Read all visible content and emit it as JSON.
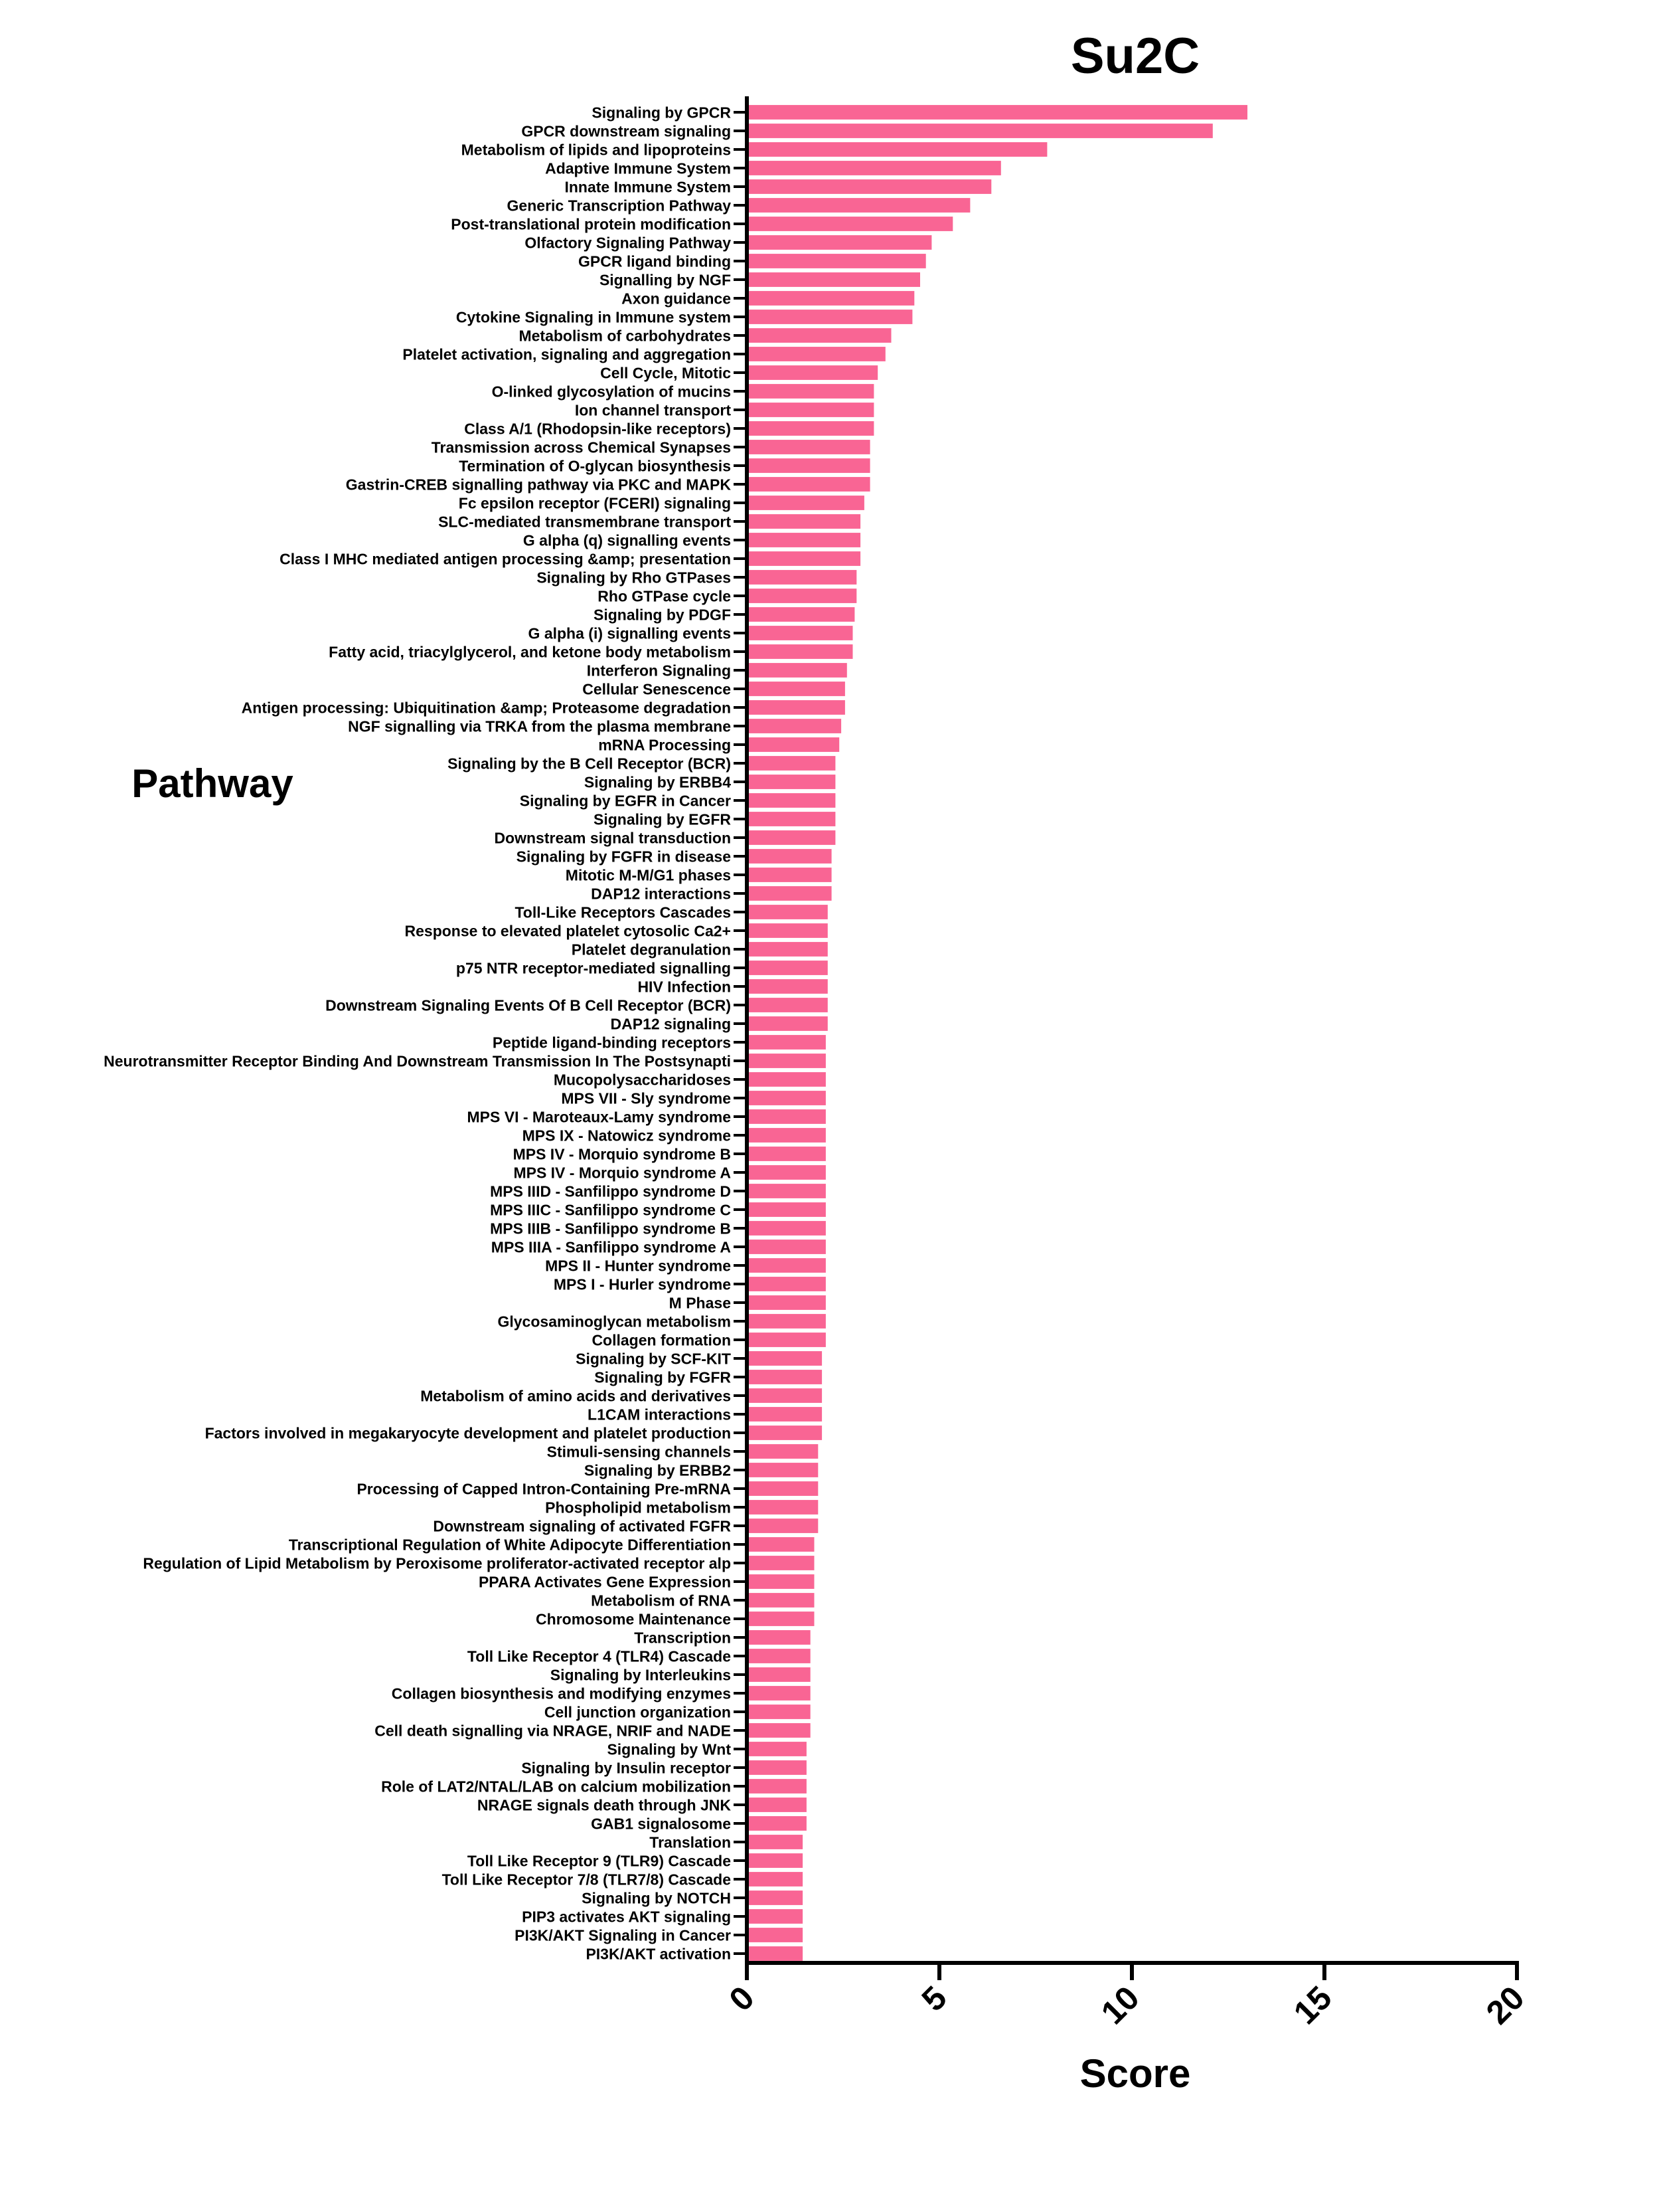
{
  "chart_data": {
    "type": "bar",
    "orientation": "horizontal",
    "title": "Su2C",
    "xlabel": "Score",
    "ylabel": "Pathway",
    "xlim": [
      0,
      20
    ],
    "xticks": [
      0,
      5,
      10,
      15,
      20
    ],
    "bar_color": "#F96594",
    "grid": false,
    "categories": [
      "Signaling by GPCR",
      "GPCR downstream signaling",
      "Metabolism of lipids and lipoproteins",
      "Adaptive Immune System",
      "Innate Immune System",
      "Generic Transcription Pathway",
      "Post-translational protein modification",
      "Olfactory Signaling Pathway",
      "GPCR ligand binding",
      "Signalling by NGF",
      "Axon guidance",
      "Cytokine Signaling in Immune system",
      "Metabolism of carbohydrates",
      "Platelet activation, signaling and aggregation",
      "Cell Cycle, Mitotic",
      "O-linked glycosylation of mucins",
      "Ion channel transport",
      "Class A/1 (Rhodopsin-like receptors)",
      "Transmission across Chemical Synapses",
      "Termination of O-glycan biosynthesis",
      "Gastrin-CREB signalling pathway via PKC and MAPK",
      "Fc epsilon receptor (FCERI) signaling",
      "SLC-mediated transmembrane transport",
      "G alpha (q) signalling events",
      "Class I MHC mediated antigen processing &amp; presentation",
      "Signaling by Rho GTPases",
      "Rho GTPase cycle",
      "Signaling by PDGF",
      "G alpha (i) signalling events",
      "Fatty acid, triacylglycerol, and ketone body metabolism",
      "Interferon Signaling",
      "Cellular Senescence",
      "Antigen processing: Ubiquitination &amp; Proteasome degradation",
      "NGF signalling via TRKA from the plasma membrane",
      "mRNA Processing",
      "Signaling by the B Cell Receptor (BCR)",
      "Signaling by ERBB4",
      "Signaling by EGFR in Cancer",
      "Signaling by EGFR",
      "Downstream signal transduction",
      "Signaling by FGFR in disease",
      "Mitotic M-M/G1 phases",
      "DAP12 interactions",
      "Toll-Like Receptors Cascades",
      "Response to elevated platelet cytosolic Ca2+",
      "Platelet degranulation",
      "p75 NTR receptor-mediated signalling",
      "HIV Infection",
      "Downstream Signaling Events Of B Cell Receptor (BCR)",
      "DAP12 signaling",
      "Peptide ligand-binding receptors",
      "Neurotransmitter Receptor Binding And Downstream Transmission In The Postsynapti",
      "Mucopolysaccharidoses",
      "MPS VII - Sly syndrome",
      "MPS VI - Maroteaux-Lamy syndrome",
      "MPS IX - Natowicz syndrome",
      "MPS IV - Morquio syndrome B",
      "MPS IV - Morquio syndrome A",
      "MPS IIID - Sanfilippo syndrome D",
      "MPS IIIC - Sanfilippo syndrome C",
      "MPS IIIB - Sanfilippo syndrome B",
      "MPS IIIA - Sanfilippo syndrome A",
      "MPS II - Hunter syndrome",
      "MPS I - Hurler syndrome",
      "M Phase",
      "Glycosaminoglycan metabolism",
      "Collagen formation",
      "Signaling by SCF-KIT",
      "Signaling by FGFR",
      "Metabolism of amino acids and derivatives",
      "L1CAM interactions",
      "Factors involved in megakaryocyte development and platelet production",
      "Stimuli-sensing channels",
      "Signaling by ERBB2",
      "Processing of Capped Intron-Containing Pre-mRNA",
      "Phospholipid metabolism",
      "Downstream signaling of activated FGFR",
      "Transcriptional Regulation of White Adipocyte Differentiation",
      "Regulation of Lipid Metabolism by Peroxisome proliferator-activated receptor alp",
      "PPARA Activates Gene Expression",
      "Metabolism of RNA",
      "Chromosome Maintenance",
      "Transcription",
      "Toll Like Receptor 4 (TLR4) Cascade",
      "Signaling by Interleukins",
      "Collagen biosynthesis and modifying enzymes",
      "Cell junction organization",
      "Cell death signalling via NRAGE, NRIF and NADE",
      "Signaling by Wnt",
      "Signaling by Insulin receptor",
      "Role of LAT2/NTAL/LAB on calcium mobilization",
      "NRAGE signals death through JNK",
      "GAB1 signalosome",
      "Translation",
      "Toll Like Receptor 9 (TLR9) Cascade",
      "Toll Like Receptor 7/8 (TLR7/8) Cascade",
      "Signaling by NOTCH",
      "PIP3 activates AKT signaling",
      "PI3K/AKT Signaling in Cancer",
      "PI3K/AKT activation"
    ],
    "values": [
      13.0,
      12.1,
      7.8,
      6.6,
      6.35,
      5.8,
      5.35,
      4.8,
      4.65,
      4.5,
      4.35,
      4.3,
      3.75,
      3.6,
      3.4,
      3.3,
      3.3,
      3.3,
      3.2,
      3.2,
      3.2,
      3.05,
      2.95,
      2.95,
      2.95,
      2.85,
      2.85,
      2.8,
      2.75,
      2.75,
      2.6,
      2.55,
      2.55,
      2.45,
      2.4,
      2.3,
      2.3,
      2.3,
      2.3,
      2.3,
      2.2,
      2.2,
      2.2,
      2.1,
      2.1,
      2.1,
      2.1,
      2.1,
      2.1,
      2.1,
      2.05,
      2.05,
      2.05,
      2.05,
      2.05,
      2.05,
      2.05,
      2.05,
      2.05,
      2.05,
      2.05,
      2.05,
      2.05,
      2.05,
      2.05,
      2.05,
      2.05,
      1.95,
      1.95,
      1.95,
      1.95,
      1.95,
      1.85,
      1.85,
      1.85,
      1.85,
      1.85,
      1.75,
      1.75,
      1.75,
      1.75,
      1.75,
      1.65,
      1.65,
      1.65,
      1.65,
      1.65,
      1.65,
      1.55,
      1.55,
      1.55,
      1.55,
      1.55,
      1.45,
      1.45,
      1.45,
      1.45,
      1.45,
      1.45,
      1.45
    ]
  }
}
